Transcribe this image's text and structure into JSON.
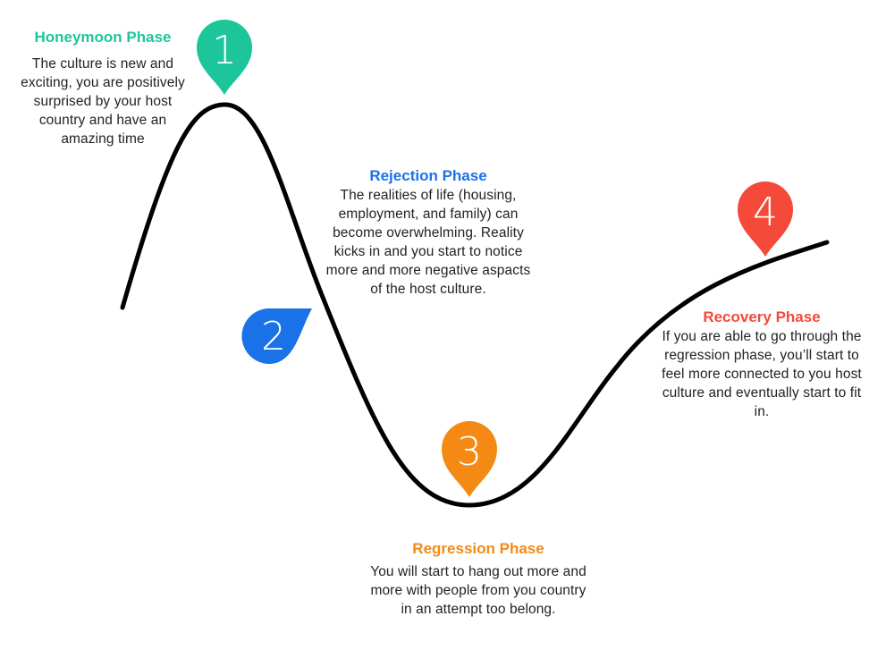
{
  "colors": {
    "curve": "#000000",
    "honeymoon": "#1DC59B",
    "rejection": "#1A72E8",
    "regression": "#F48A14",
    "recovery": "#F5493A",
    "text": "#222222"
  },
  "phases": [
    {
      "number": "1",
      "title": "Honeymoon Phase",
      "description": "The culture is new and exciting, you are positively surprised by your host country and have an amazing time"
    },
    {
      "number": "2",
      "title": "Rejection Phase",
      "description": "The realities of life (housing, employment, and family) can become overwhelming. Reality kicks in and you start to notice more and more negative aspacts of the host culture."
    },
    {
      "number": "3",
      "title": "Regression Phase",
      "description": "You will start to hang out more and more with people from you country in an attempt too belong."
    },
    {
      "number": "4",
      "title": "Recovery Phase",
      "description": "If you are able to go through the regression phase, you’ll start to feel more connected to you host culture and eventually start to fit in."
    }
  ]
}
